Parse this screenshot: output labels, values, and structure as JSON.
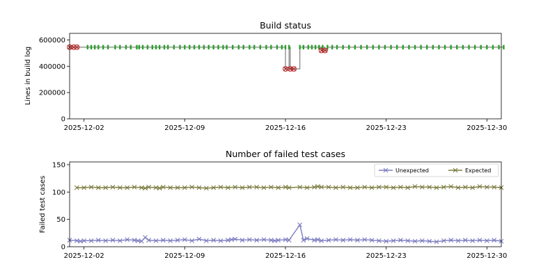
{
  "colors": {
    "pass": "#2ca02c",
    "fail": "#b22222",
    "status_line": "#808080",
    "unexpected": "#7b7bc0",
    "expected": "#7b7b3f"
  },
  "chart_data": [
    {
      "type": "line",
      "title": "Build status",
      "xlabel": "",
      "ylabel": "Lines in build log",
      "xlim": [
        "2025-12-01",
        "2025-12-31"
      ],
      "ylim": [
        0,
        650000
      ],
      "yticks": [
        0,
        200000,
        400000,
        600000
      ],
      "ytick_labels": [
        "0",
        "200000",
        "400000",
        "600000"
      ],
      "xticks": [
        "2025-12-02",
        "2025-12-09",
        "2025-12-16",
        "2025-12-23",
        "2025-12-30"
      ],
      "grid": false,
      "series": [
        {
          "marker": "pass",
          "points": [
            [
              "2025-12-02T06:00",
              545000
            ],
            [
              "2025-12-02T12:00",
              545000
            ],
            [
              "2025-12-02T18:00",
              545000
            ],
            [
              "2025-12-03T00:00",
              545000
            ],
            [
              "2025-12-03T08:00",
              545000
            ],
            [
              "2025-12-03T16:00",
              545000
            ],
            [
              "2025-12-04T04:00",
              545000
            ],
            [
              "2025-12-04T12:00",
              545000
            ],
            [
              "2025-12-04T22:00",
              545000
            ],
            [
              "2025-12-05T06:00",
              545000
            ],
            [
              "2025-12-05T16:00",
              545000
            ],
            [
              "2025-12-05T20:00",
              545000
            ],
            [
              "2025-12-06T02:00",
              545000
            ],
            [
              "2025-12-06T10:00",
              545000
            ],
            [
              "2025-12-06T18:00",
              545000
            ],
            [
              "2025-12-07T00:00",
              545000
            ],
            [
              "2025-12-07T06:00",
              545000
            ],
            [
              "2025-12-07T14:00",
              545000
            ],
            [
              "2025-12-07T20:00",
              545000
            ],
            [
              "2025-12-08T06:00",
              545000
            ],
            [
              "2025-12-08T16:00",
              545000
            ],
            [
              "2025-12-09T00:00",
              545000
            ],
            [
              "2025-12-09T08:00",
              545000
            ],
            [
              "2025-12-09T16:00",
              545000
            ],
            [
              "2025-12-10T00:00",
              545000
            ],
            [
              "2025-12-10T08:00",
              545000
            ],
            [
              "2025-12-10T16:00",
              545000
            ],
            [
              "2025-12-11T00:00",
              545000
            ],
            [
              "2025-12-11T08:00",
              545000
            ],
            [
              "2025-12-11T16:00",
              545000
            ],
            [
              "2025-12-11T22:00",
              545000
            ],
            [
              "2025-12-12T08:00",
              545000
            ],
            [
              "2025-12-12T18:00",
              545000
            ],
            [
              "2025-12-13T02:00",
              545000
            ],
            [
              "2025-12-13T12:00",
              545000
            ],
            [
              "2025-12-13T20:00",
              545000
            ],
            [
              "2025-12-14T06:00",
              545000
            ],
            [
              "2025-12-14T16:00",
              545000
            ],
            [
              "2025-12-15T00:00",
              545000
            ],
            [
              "2025-12-15T10:00",
              545000
            ],
            [
              "2025-12-15T18:00",
              545000
            ],
            [
              "2025-12-16T00:00",
              545000
            ],
            [
              "2025-12-16T06:00",
              545000
            ],
            [
              "2025-12-17T00:00",
              545000
            ],
            [
              "2025-12-17T06:00",
              545000
            ],
            [
              "2025-12-17T14:00",
              545000
            ],
            [
              "2025-12-17T20:00",
              545000
            ],
            [
              "2025-12-18T02:00",
              545000
            ],
            [
              "2025-12-18T08:00",
              545000
            ],
            [
              "2025-12-18T14:00",
              545000
            ],
            [
              "2025-12-18T22:00",
              545000
            ],
            [
              "2025-12-19T06:00",
              545000
            ],
            [
              "2025-12-19T14:00",
              545000
            ],
            [
              "2025-12-20T00:00",
              545000
            ],
            [
              "2025-12-20T10:00",
              545000
            ],
            [
              "2025-12-20T20:00",
              545000
            ],
            [
              "2025-12-21T06:00",
              545000
            ],
            [
              "2025-12-21T16:00",
              545000
            ],
            [
              "2025-12-22T02:00",
              545000
            ],
            [
              "2025-12-22T12:00",
              545000
            ],
            [
              "2025-12-22T22:00",
              545000
            ],
            [
              "2025-12-23T08:00",
              545000
            ],
            [
              "2025-12-23T18:00",
              545000
            ],
            [
              "2025-12-24T04:00",
              545000
            ],
            [
              "2025-12-24T14:00",
              545000
            ],
            [
              "2025-12-25T00:00",
              545000
            ],
            [
              "2025-12-25T10:00",
              545000
            ],
            [
              "2025-12-25T20:00",
              545000
            ],
            [
              "2025-12-26T06:00",
              545000
            ],
            [
              "2025-12-26T16:00",
              545000
            ],
            [
              "2025-12-27T02:00",
              545000
            ],
            [
              "2025-12-27T12:00",
              545000
            ],
            [
              "2025-12-27T22:00",
              545000
            ],
            [
              "2025-12-28T08:00",
              545000
            ],
            [
              "2025-12-28T18:00",
              545000
            ],
            [
              "2025-12-29T04:00",
              545000
            ],
            [
              "2025-12-29T14:00",
              545000
            ],
            [
              "2025-12-30T00:00",
              545000
            ],
            [
              "2025-12-30T10:00",
              545000
            ],
            [
              "2025-12-30T20:00",
              545000
            ],
            [
              "2025-12-31T04:00",
              545000
            ]
          ]
        },
        {
          "marker": "fail",
          "points": [
            [
              "2025-12-01T00:00",
              545000
            ],
            [
              "2025-12-01T07:00",
              545000
            ],
            [
              "2025-12-01T12:00",
              545000
            ],
            [
              "2025-12-16T00:00",
              380000
            ],
            [
              "2025-12-16T08:00",
              380000
            ],
            [
              "2025-12-16T14:00",
              380000
            ],
            [
              "2025-12-18T12:00",
              520000
            ],
            [
              "2025-12-18T18:00",
              520000
            ]
          ]
        }
      ]
    },
    {
      "type": "line",
      "title": "Number of failed test cases",
      "xlabel": "",
      "ylabel": "Failed test cases",
      "xlim": [
        "2025-12-01",
        "2025-12-31"
      ],
      "ylim": [
        0,
        155
      ],
      "yticks": [
        0,
        50,
        100,
        150
      ],
      "ytick_labels": [
        "0",
        "50",
        "100",
        "150"
      ],
      "xticks": [
        "2025-12-02",
        "2025-12-09",
        "2025-12-16",
        "2025-12-23",
        "2025-12-30"
      ],
      "grid": false,
      "legend": "top-right",
      "series": [
        {
          "name": "Unexpected",
          "points": [
            [
              "2025-12-01T00:00",
              12
            ],
            [
              "2025-12-01T12:00",
              11
            ],
            [
              "2025-12-01T18:00",
              10
            ],
            [
              "2025-12-02T00:00",
              11
            ],
            [
              "2025-12-02T12:00",
              11
            ],
            [
              "2025-12-03T00:00",
              12
            ],
            [
              "2025-12-03T12:00",
              11
            ],
            [
              "2025-12-04T00:00",
              12
            ],
            [
              "2025-12-04T12:00",
              11
            ],
            [
              "2025-12-05T00:00",
              13
            ],
            [
              "2025-12-05T12:00",
              12
            ],
            [
              "2025-12-05T18:00",
              11
            ],
            [
              "2025-12-06T00:00",
              10
            ],
            [
              "2025-12-06T06:00",
              17
            ],
            [
              "2025-12-06T12:00",
              12
            ],
            [
              "2025-12-07T00:00",
              11
            ],
            [
              "2025-12-07T12:00",
              12
            ],
            [
              "2025-12-08T00:00",
              11
            ],
            [
              "2025-12-08T12:00",
              12
            ],
            [
              "2025-12-09T00:00",
              13
            ],
            [
              "2025-12-09T12:00",
              11
            ],
            [
              "2025-12-10T00:00",
              14
            ],
            [
              "2025-12-10T12:00",
              11
            ],
            [
              "2025-12-11T00:00",
              12
            ],
            [
              "2025-12-11T12:00",
              11
            ],
            [
              "2025-12-12T00:00",
              12
            ],
            [
              "2025-12-12T06:00",
              13
            ],
            [
              "2025-12-12T12:00",
              14
            ],
            [
              "2025-12-13T00:00",
              12
            ],
            [
              "2025-12-13T12:00",
              13
            ],
            [
              "2025-12-14T00:00",
              12
            ],
            [
              "2025-12-14T12:00",
              13
            ],
            [
              "2025-12-15T00:00",
              12
            ],
            [
              "2025-12-15T06:00",
              11
            ],
            [
              "2025-12-15T12:00",
              12
            ],
            [
              "2025-12-16T00:00",
              13
            ],
            [
              "2025-12-16T06:00",
              12
            ],
            [
              "2025-12-17T00:00",
              40
            ],
            [
              "2025-12-17T06:00",
              12
            ],
            [
              "2025-12-17T12:00",
              15
            ],
            [
              "2025-12-18T00:00",
              12
            ],
            [
              "2025-12-18T06:00",
              13
            ],
            [
              "2025-12-18T12:00",
              11
            ],
            [
              "2025-12-19T00:00",
              12
            ],
            [
              "2025-12-19T12:00",
              13
            ],
            [
              "2025-12-20T00:00",
              12
            ],
            [
              "2025-12-20T12:00",
              13
            ],
            [
              "2025-12-21T00:00",
              12
            ],
            [
              "2025-12-21T12:00",
              13
            ],
            [
              "2025-12-22T00:00",
              12
            ],
            [
              "2025-12-22T12:00",
              11
            ],
            [
              "2025-12-23T00:00",
              10
            ],
            [
              "2025-12-23T12:00",
              11
            ],
            [
              "2025-12-24T00:00",
              12
            ],
            [
              "2025-12-24T12:00",
              11
            ],
            [
              "2025-12-25T00:00",
              10
            ],
            [
              "2025-12-25T12:00",
              11
            ],
            [
              "2025-12-26T00:00",
              10
            ],
            [
              "2025-12-26T12:00",
              9
            ],
            [
              "2025-12-27T00:00",
              11
            ],
            [
              "2025-12-27T12:00",
              12
            ],
            [
              "2025-12-28T00:00",
              11
            ],
            [
              "2025-12-28T12:00",
              12
            ],
            [
              "2025-12-29T00:00",
              11
            ],
            [
              "2025-12-29T12:00",
              12
            ],
            [
              "2025-12-30T00:00",
              11
            ],
            [
              "2025-12-30T12:00",
              12
            ],
            [
              "2025-12-31T00:00",
              10
            ]
          ]
        },
        {
          "name": "Expected",
          "points": [
            [
              "2025-12-01T12:00",
              108
            ],
            [
              "2025-12-02T00:00",
              108
            ],
            [
              "2025-12-02T12:00",
              109
            ],
            [
              "2025-12-03T00:00",
              108
            ],
            [
              "2025-12-03T12:00",
              108
            ],
            [
              "2025-12-04T00:00",
              109
            ],
            [
              "2025-12-04T12:00",
              108
            ],
            [
              "2025-12-05T00:00",
              108
            ],
            [
              "2025-12-05T12:00",
              109
            ],
            [
              "2025-12-06T00:00",
              108
            ],
            [
              "2025-12-06T06:00",
              107
            ],
            [
              "2025-12-06T12:00",
              109
            ],
            [
              "2025-12-07T00:00",
              108
            ],
            [
              "2025-12-07T06:00",
              107
            ],
            [
              "2025-12-07T12:00",
              109
            ],
            [
              "2025-12-08T00:00",
              108
            ],
            [
              "2025-12-08T12:00",
              108
            ],
            [
              "2025-12-09T00:00",
              108
            ],
            [
              "2025-12-09T12:00",
              109
            ],
            [
              "2025-12-10T00:00",
              108
            ],
            [
              "2025-12-10T12:00",
              107
            ],
            [
              "2025-12-11T00:00",
              108
            ],
            [
              "2025-12-11T12:00",
              109
            ],
            [
              "2025-12-12T00:00",
              108
            ],
            [
              "2025-12-12T12:00",
              109
            ],
            [
              "2025-12-13T00:00",
              108
            ],
            [
              "2025-12-13T12:00",
              109
            ],
            [
              "2025-12-14T00:00",
              109
            ],
            [
              "2025-12-14T12:00",
              108
            ],
            [
              "2025-12-15T00:00",
              109
            ],
            [
              "2025-12-15T12:00",
              108
            ],
            [
              "2025-12-16T00:00",
              109
            ],
            [
              "2025-12-16T06:00",
              108
            ],
            [
              "2025-12-17T00:00",
              109
            ],
            [
              "2025-12-17T12:00",
              108
            ],
            [
              "2025-12-18T00:00",
              109
            ],
            [
              "2025-12-18T06:00",
              110
            ],
            [
              "2025-12-18T12:00",
              109
            ],
            [
              "2025-12-19T00:00",
              109
            ],
            [
              "2025-12-19T12:00",
              108
            ],
            [
              "2025-12-20T00:00",
              109
            ],
            [
              "2025-12-20T12:00",
              108
            ],
            [
              "2025-12-21T00:00",
              108
            ],
            [
              "2025-12-21T12:00",
              109
            ],
            [
              "2025-12-22T00:00",
              108
            ],
            [
              "2025-12-22T12:00",
              109
            ],
            [
              "2025-12-23T00:00",
              109
            ],
            [
              "2025-12-23T12:00",
              108
            ],
            [
              "2025-12-24T00:00",
              109
            ],
            [
              "2025-12-24T12:00",
              108
            ],
            [
              "2025-12-25T00:00",
              110
            ],
            [
              "2025-12-25T12:00",
              109
            ],
            [
              "2025-12-26T00:00",
              109
            ],
            [
              "2025-12-26T12:00",
              108
            ],
            [
              "2025-12-27T00:00",
              109
            ],
            [
              "2025-12-27T12:00",
              110
            ],
            [
              "2025-12-28T00:00",
              108
            ],
            [
              "2025-12-28T12:00",
              109
            ],
            [
              "2025-12-29T00:00",
              108
            ],
            [
              "2025-12-29T12:00",
              110
            ],
            [
              "2025-12-30T00:00",
              109
            ],
            [
              "2025-12-30T12:00",
              109
            ],
            [
              "2025-12-31T00:00",
              108
            ]
          ]
        }
      ]
    }
  ]
}
